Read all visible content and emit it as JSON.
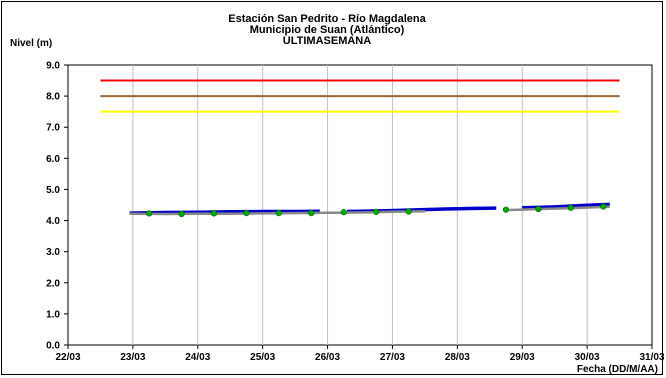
{
  "chart_data": {
    "type": "line",
    "title_lines": [
      "Estación San Pedrito - Río Magdalena",
      "Municipio de Suan (Atlántico)",
      "ULTIMASEMANA"
    ],
    "ylabel": "Nivel (m)",
    "xlabel": "Fecha (DD/M/AA)",
    "ylim": [
      0,
      9
    ],
    "yticks": [
      "0.0",
      "1.0",
      "2.0",
      "3.0",
      "4.0",
      "5.0",
      "6.0",
      "7.0",
      "8.0",
      "9.0"
    ],
    "xlim": [
      0,
      9
    ],
    "xticks": [
      "22/03",
      "23/03",
      "24/03",
      "25/03",
      "26/03",
      "27/03",
      "28/03",
      "29/03",
      "30/03",
      "31/03"
    ],
    "grid": "vertical",
    "thresholds": [
      {
        "value": 8.5,
        "color": "#ff0000",
        "x_start": 0.5,
        "x_end": 8.5
      },
      {
        "value": 8.0,
        "color": "#996633",
        "x_start": 0.5,
        "x_end": 8.5
      },
      {
        "value": 7.5,
        "color": "#ffff00",
        "x_start": 0.5,
        "x_end": 8.5
      }
    ],
    "series": [
      {
        "color": "#0000cc",
        "style": "line",
        "segments": [
          [
            [
              0.95,
              4.24
            ],
            [
              1.5,
              4.26
            ],
            [
              2.0,
              4.27
            ],
            [
              2.5,
              4.28
            ],
            [
              3.0,
              4.29
            ],
            [
              3.5,
              4.29
            ],
            [
              3.88,
              4.3
            ]
          ],
          [
            [
              4.3,
              4.29
            ],
            [
              4.8,
              4.31
            ],
            [
              5.3,
              4.34
            ],
            [
              5.8,
              4.37
            ],
            [
              6.3,
              4.39
            ],
            [
              6.6,
              4.4
            ]
          ],
          [
            [
              7.0,
              4.41
            ],
            [
              7.5,
              4.44
            ],
            [
              8.0,
              4.49
            ],
            [
              8.35,
              4.52
            ]
          ]
        ]
      },
      {
        "color": "#888888",
        "style": "line",
        "segments": [
          [
            [
              0.95,
              4.22
            ],
            [
              1.5,
              4.21
            ],
            [
              2.0,
              4.22
            ],
            [
              2.5,
              4.22
            ],
            [
              3.0,
              4.23
            ],
            [
              3.5,
              4.24
            ],
            [
              4.0,
              4.25
            ],
            [
              4.5,
              4.26
            ],
            [
              5.0,
              4.28
            ],
            [
              5.5,
              4.3
            ]
          ],
          [
            [
              6.8,
              4.34
            ],
            [
              7.3,
              4.37
            ],
            [
              7.8,
              4.4
            ],
            [
              8.35,
              4.45
            ]
          ]
        ]
      },
      {
        "color": "#00aa00",
        "style": "points",
        "points": [
          [
            1.25,
            4.23
          ],
          [
            1.75,
            4.21
          ],
          [
            2.25,
            4.23
          ],
          [
            2.75,
            4.24
          ],
          [
            3.25,
            4.24
          ],
          [
            3.75,
            4.24
          ],
          [
            4.25,
            4.27
          ],
          [
            4.75,
            4.28
          ],
          [
            5.25,
            4.29
          ],
          [
            6.75,
            4.35
          ],
          [
            7.25,
            4.37
          ],
          [
            7.75,
            4.41
          ],
          [
            8.25,
            4.45
          ]
        ]
      }
    ]
  }
}
